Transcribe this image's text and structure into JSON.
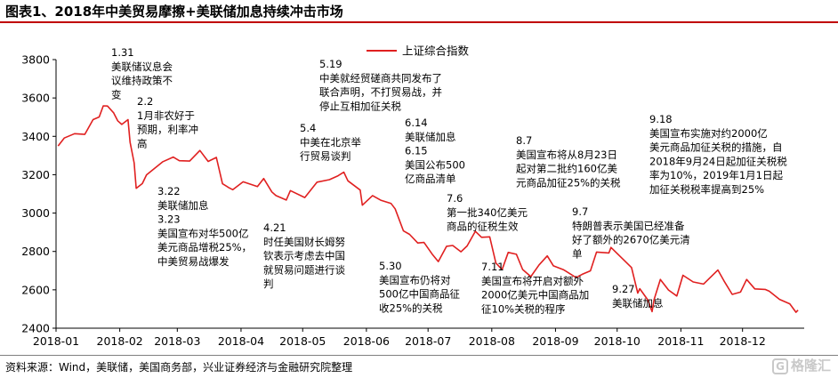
{
  "title": "图表1、2018年中美贸易摩擦+美联储加息持续冲击市场",
  "source": "资料来源：Wind，美联储，美国商务部，兴业证券经济与金融研究院整理",
  "watermark": {
    "badge": "G",
    "text": "格隆汇"
  },
  "colors": {
    "line": "#e02020",
    "title_rule": "#c00000",
    "axis": "#000000"
  },
  "chart_data": {
    "type": "line",
    "legend_position": "top-right",
    "grid": false,
    "ylim": [
      2400,
      3800
    ],
    "yticks": [
      2400,
      2600,
      2800,
      3000,
      3200,
      3400,
      3600,
      3800
    ],
    "xticks": [
      "2018-01",
      "2018-02",
      "2018-03",
      "2018-04",
      "2018-05",
      "2018-06",
      "2018-07",
      "2018-08",
      "2018-09",
      "2018-10",
      "2018-11",
      "2018-12"
    ],
    "xlim": [
      "2018-01-01",
      "2018-12-31"
    ],
    "series": [
      {
        "name": "上证综合指数",
        "color": "#e02020",
        "points": [
          [
            "2018-01-02",
            3350
          ],
          [
            "2018-01-05",
            3391
          ],
          [
            "2018-01-10",
            3414
          ],
          [
            "2018-01-15",
            3410
          ],
          [
            "2018-01-19",
            3487
          ],
          [
            "2018-01-22",
            3501
          ],
          [
            "2018-01-24",
            3559
          ],
          [
            "2018-01-26",
            3558
          ],
          [
            "2018-01-29",
            3523
          ],
          [
            "2018-01-31",
            3481
          ],
          [
            "2018-02-02",
            3462
          ],
          [
            "2018-02-05",
            3487
          ],
          [
            "2018-02-06",
            3370
          ],
          [
            "2018-02-08",
            3262
          ],
          [
            "2018-02-09",
            3129
          ],
          [
            "2018-02-12",
            3154
          ],
          [
            "2018-02-14",
            3199
          ],
          [
            "2018-02-22",
            3268
          ],
          [
            "2018-02-27",
            3292
          ],
          [
            "2018-03-02",
            3273
          ],
          [
            "2018-03-07",
            3271
          ],
          [
            "2018-03-12",
            3326
          ],
          [
            "2018-03-16",
            3269
          ],
          [
            "2018-03-20",
            3290
          ],
          [
            "2018-03-23",
            3153
          ],
          [
            "2018-03-26",
            3133
          ],
          [
            "2018-03-28",
            3122
          ],
          [
            "2018-04-02",
            3163
          ],
          [
            "2018-04-09",
            3138
          ],
          [
            "2018-04-12",
            3180
          ],
          [
            "2018-04-16",
            3110
          ],
          [
            "2018-04-18",
            3091
          ],
          [
            "2018-04-23",
            3068
          ],
          [
            "2018-04-25",
            3117
          ],
          [
            "2018-05-02",
            3081
          ],
          [
            "2018-05-08",
            3161
          ],
          [
            "2018-05-14",
            3174
          ],
          [
            "2018-05-18",
            3193
          ],
          [
            "2018-05-21",
            3213
          ],
          [
            "2018-05-23",
            3168
          ],
          [
            "2018-05-29",
            3120
          ],
          [
            "2018-05-30",
            3041
          ],
          [
            "2018-06-04",
            3091
          ],
          [
            "2018-06-08",
            3067
          ],
          [
            "2018-06-13",
            3050
          ],
          [
            "2018-06-15",
            3022
          ],
          [
            "2018-06-19",
            2907
          ],
          [
            "2018-06-22",
            2889
          ],
          [
            "2018-06-26",
            2844
          ],
          [
            "2018-06-29",
            2847
          ],
          [
            "2018-07-03",
            2786
          ],
          [
            "2018-07-06",
            2747
          ],
          [
            "2018-07-10",
            2827
          ],
          [
            "2018-07-13",
            2831
          ],
          [
            "2018-07-17",
            2798
          ],
          [
            "2018-07-20",
            2829
          ],
          [
            "2018-07-24",
            2905
          ],
          [
            "2018-07-27",
            2874
          ],
          [
            "2018-07-31",
            2876
          ],
          [
            "2018-08-03",
            2740
          ],
          [
            "2018-08-06",
            2705
          ],
          [
            "2018-08-09",
            2795
          ],
          [
            "2018-08-13",
            2785
          ],
          [
            "2018-08-16",
            2706
          ],
          [
            "2018-08-20",
            2669
          ],
          [
            "2018-08-24",
            2730
          ],
          [
            "2018-08-28",
            2777
          ],
          [
            "2018-08-31",
            2725
          ],
          [
            "2018-09-05",
            2704
          ],
          [
            "2018-09-11",
            2664
          ],
          [
            "2018-09-14",
            2681
          ],
          [
            "2018-09-18",
            2699
          ],
          [
            "2018-09-21",
            2797
          ],
          [
            "2018-09-27",
            2792
          ],
          [
            "2018-09-28",
            2821
          ],
          [
            "2018-10-08",
            2716
          ],
          [
            "2018-10-11",
            2583
          ],
          [
            "2018-10-12",
            2606
          ],
          [
            "2018-10-16",
            2546
          ],
          [
            "2018-10-18",
            2486
          ],
          [
            "2018-10-19",
            2550
          ],
          [
            "2018-10-22",
            2654
          ],
          [
            "2018-10-26",
            2599
          ],
          [
            "2018-10-30",
            2568
          ],
          [
            "2018-11-02",
            2676
          ],
          [
            "2018-11-07",
            2641
          ],
          [
            "2018-11-12",
            2630
          ],
          [
            "2018-11-19",
            2703
          ],
          [
            "2018-11-22",
            2646
          ],
          [
            "2018-11-26",
            2576
          ],
          [
            "2018-11-30",
            2588
          ],
          [
            "2018-12-03",
            2654
          ],
          [
            "2018-12-07",
            2605
          ],
          [
            "2018-12-12",
            2602
          ],
          [
            "2018-12-14",
            2593
          ],
          [
            "2018-12-19",
            2550
          ],
          [
            "2018-12-24",
            2527
          ],
          [
            "2018-12-27",
            2483
          ],
          [
            "2018-12-28",
            2494
          ]
        ]
      }
    ],
    "annotations": [
      {
        "lines": [
          "1.31",
          "美联储议息会",
          "议维持政策不",
          "变"
        ]
      },
      {
        "lines": [
          "2.2",
          "1月非农好于",
          "预期，利率冲",
          "高"
        ]
      },
      {
        "lines": [
          "3.22",
          "美联储加息",
          "3.23",
          "美国宣布对华500亿",
          "美元商品增税25%，",
          "中美贸易战爆发"
        ]
      },
      {
        "lines": [
          "4.21",
          "时任美国财长姆努",
          "钦表示考虑去中国",
          "就贸易问题进行谈",
          "判"
        ]
      },
      {
        "lines": [
          "5.4",
          "中美在北京举",
          "行贸易谈判"
        ]
      },
      {
        "lines": [
          "5.19",
          "中美就经贸磋商共同发布了",
          "联合声明，不打贸易战，并",
          "停止互相加征关税"
        ]
      },
      {
        "lines": [
          "5.30",
          "美国宣布仍将对",
          "500亿中国商品征",
          "收25%的关税"
        ]
      },
      {
        "lines": [
          "6.14",
          "美联储加息",
          "6.15",
          "美国公布500",
          "亿商品清单"
        ]
      },
      {
        "lines": [
          "7.6",
          "第一批340亿美元",
          "商品的征税生效"
        ]
      },
      {
        "lines": [
          "7.11",
          "美国宣布将开启对额外",
          "2000亿美元中国商品加",
          "征10%关税的程序"
        ]
      },
      {
        "lines": [
          "8.7",
          "美国宣布将从8月23日",
          "起对第二批约160亿美",
          "元商品加征25%的关税"
        ]
      },
      {
        "lines": [
          "9.7",
          "特朗普表示美国已经准备",
          "好了额外的2670亿美元清",
          "单"
        ]
      },
      {
        "lines": [
          "9.18",
          "美国宣布实施对约2000亿",
          "美元商品加征关税的措施，自",
          "2018年9月24日起加征关税税",
          "率为10%，2019年1月1日起",
          "加征关税税率提高到25%"
        ]
      },
      {
        "lines": [
          "9.27",
          "美联储加息"
        ]
      }
    ]
  }
}
